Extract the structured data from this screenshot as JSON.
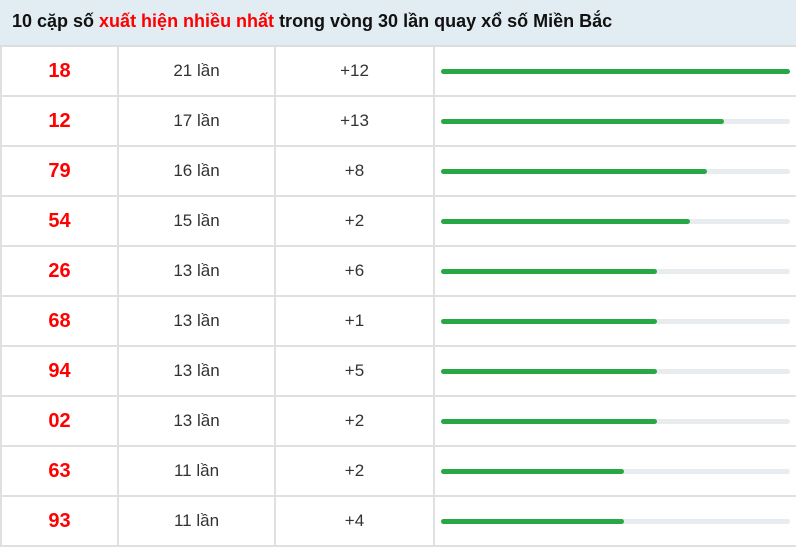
{
  "title": {
    "prefix": "10 cặp số ",
    "highlight": "xuất hiện nhiều nhất",
    "suffix": " trong vòng 30 lần quay xổ số Miền Bắc"
  },
  "colors": {
    "highlight": "#ff0000",
    "bar": "#28a745",
    "track": "#e9ecef",
    "header_bg": "#e2ecf3"
  },
  "max_count": 21,
  "rows": [
    {
      "number": "18",
      "count": "21 lần",
      "count_value": 21,
      "diff": "+12"
    },
    {
      "number": "12",
      "count": "17 lần",
      "count_value": 17,
      "diff": "+13"
    },
    {
      "number": "79",
      "count": "16 lần",
      "count_value": 16,
      "diff": "+8"
    },
    {
      "number": "54",
      "count": "15 lần",
      "count_value": 15,
      "diff": "+2"
    },
    {
      "number": "26",
      "count": "13 lần",
      "count_value": 13,
      "diff": "+6"
    },
    {
      "number": "68",
      "count": "13 lần",
      "count_value": 13,
      "diff": "+1"
    },
    {
      "number": "94",
      "count": "13 lần",
      "count_value": 13,
      "diff": "+5"
    },
    {
      "number": "02",
      "count": "13 lần",
      "count_value": 13,
      "diff": "+2"
    },
    {
      "number": "63",
      "count": "11 lần",
      "count_value": 11,
      "diff": "+2"
    },
    {
      "number": "93",
      "count": "11 lần",
      "count_value": 11,
      "diff": "+4"
    }
  ]
}
